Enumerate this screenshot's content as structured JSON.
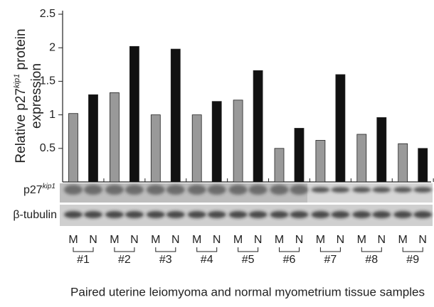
{
  "chart_data": {
    "type": "bar",
    "y_label_start": "Relative p27",
    "y_label_sup": "kip1",
    "y_label_end": " protein",
    "y_label_line2": "expression",
    "x_label": "Paired uterine leiomyoma and normal myometrium tissue samples",
    "categories": [
      "#1",
      "#2",
      "#3",
      "#4",
      "#5",
      "#6",
      "#7",
      "#8",
      "#9"
    ],
    "series": [
      {
        "name": "M",
        "color": "#999999",
        "values": [
          1.02,
          1.33,
          1.0,
          1.0,
          1.22,
          0.5,
          0.62,
          0.71,
          0.57
        ]
      },
      {
        "name": "N",
        "color": "#111111",
        "values": [
          1.3,
          2.02,
          1.98,
          1.2,
          1.66,
          0.8,
          1.6,
          0.96,
          0.5
        ]
      }
    ],
    "ylim": [
      0,
      2.5
    ],
    "yticks": [
      0.5,
      1,
      1.5,
      2,
      2.5
    ],
    "blot_label_1": "p27",
    "blot_label_1_sup": "kip1",
    "blot_label_2": "β-tubulin"
  }
}
